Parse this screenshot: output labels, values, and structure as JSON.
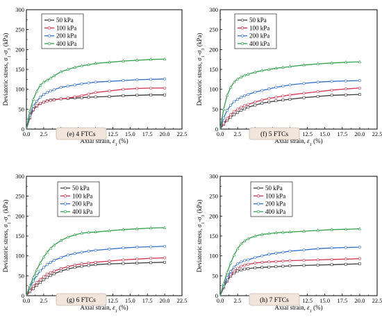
{
  "colors": {
    "axis": "#000000",
    "caption_bg": "#f2e6dc",
    "caption_border": "#c9b8a6",
    "series": [
      "#3a3a3a",
      "#d6304b",
      "#2f6fcf",
      "#2fa34a"
    ]
  },
  "chart_data": [
    {
      "type": "line",
      "caption": "(e) 4 FTCs",
      "ylabel": "Deviatoric stress, σ1-σ3 (kPa)",
      "xlabel": "Axial strain, ε1 (%)",
      "xlim": [
        0,
        22.5
      ],
      "ylim": [
        0,
        300
      ],
      "xticks": [
        "0.0",
        "2.5",
        "5.0",
        "7.5",
        "10.0",
        "12.5",
        "15.0",
        "17.5",
        "20.0",
        "22.5"
      ],
      "yticks": [
        "0",
        "50",
        "100",
        "150",
        "200",
        "250",
        "300"
      ],
      "legend_position": "top-left",
      "x": [
        0,
        0.5,
        1,
        1.5,
        2,
        2.5,
        3,
        3.5,
        4,
        5,
        6,
        7,
        8,
        9,
        10,
        12,
        14,
        16,
        18,
        20
      ],
      "series": [
        {
          "name": "50 kPa",
          "values": [
            0,
            28,
            48,
            58,
            64,
            68,
            71,
            73,
            74,
            76,
            77,
            78,
            79,
            80,
            81,
            82,
            84,
            85,
            86,
            86
          ]
        },
        {
          "name": "100 kPa",
          "values": [
            0,
            30,
            50,
            60,
            65,
            68,
            70,
            72,
            73,
            76,
            78,
            81,
            84,
            88,
            92,
            96,
            100,
            102,
            103,
            103
          ]
        },
        {
          "name": "200 kPa",
          "values": [
            0,
            35,
            58,
            70,
            80,
            87,
            92,
            96,
            99,
            105,
            108,
            111,
            114,
            116,
            118,
            120,
            122,
            124,
            125,
            126
          ]
        },
        {
          "name": "400 kPa",
          "values": [
            0,
            45,
            75,
            95,
            110,
            118,
            123,
            128,
            134,
            144,
            150,
            155,
            159,
            162,
            165,
            168,
            171,
            173,
            175,
            176
          ]
        }
      ]
    },
    {
      "type": "line",
      "caption": "(f) 5 FTCs",
      "ylabel": "Deviatoric stress, σ1-σ3 (kPa)",
      "xlabel": "Axial strain, ε1 (%)",
      "xlim": [
        0,
        22.5
      ],
      "ylim": [
        0,
        300
      ],
      "xticks": [
        "0.0",
        "2.5",
        "5.0",
        "7.5",
        "10.0",
        "12.5",
        "15.0",
        "17.5",
        "20.0",
        "22.5"
      ],
      "yticks": [
        "0",
        "50",
        "100",
        "150",
        "200",
        "250",
        "300"
      ],
      "legend_position": "top-left",
      "x": [
        0,
        0.5,
        1,
        1.5,
        2,
        2.5,
        3,
        3.5,
        4,
        5,
        6,
        7,
        8,
        9,
        10,
        12,
        14,
        16,
        18,
        20
      ],
      "series": [
        {
          "name": "50 kPa",
          "values": [
            0,
            12,
            22,
            30,
            36,
            42,
            47,
            51,
            55,
            60,
            65,
            68,
            71,
            73,
            75,
            79,
            82,
            85,
            86,
            87
          ]
        },
        {
          "name": "100 kPa",
          "values": [
            0,
            15,
            27,
            36,
            44,
            50,
            55,
            59,
            62,
            68,
            73,
            77,
            80,
            83,
            86,
            90,
            94,
            98,
            101,
            103
          ]
        },
        {
          "name": "200 kPa",
          "values": [
            0,
            28,
            47,
            60,
            69,
            75,
            80,
            84,
            87,
            93,
            97,
            101,
            105,
            108,
            111,
            115,
            118,
            120,
            121,
            122
          ]
        },
        {
          "name": "400 kPa",
          "values": [
            0,
            50,
            85,
            105,
            118,
            126,
            131,
            135,
            138,
            143,
            147,
            150,
            153,
            155,
            157,
            161,
            164,
            166,
            168,
            169
          ]
        }
      ]
    },
    {
      "type": "line",
      "caption": "(g) 6 FTCs",
      "ylabel": "Deviatoric stress, σ1-σ3 (kPa)",
      "xlabel": "Axial strain, ε1 (%)",
      "xlim": [
        0,
        22.5
      ],
      "ylim": [
        0,
        300
      ],
      "xticks": [
        "0.0",
        "2.5",
        "5.0",
        "7.5",
        "10.0",
        "12.5",
        "15.0",
        "17.5",
        "20.0",
        "22.5"
      ],
      "yticks": [
        "0",
        "50",
        "100",
        "150",
        "200",
        "250",
        "300"
      ],
      "legend_position": "top-center",
      "x": [
        0,
        0.5,
        1,
        1.5,
        2,
        2.5,
        3,
        3.5,
        4,
        5,
        6,
        7,
        8,
        9,
        10,
        12,
        14,
        16,
        18,
        20
      ],
      "series": [
        {
          "name": "50 kPa",
          "values": [
            0,
            10,
            18,
            26,
            33,
            40,
            46,
            51,
            55,
            62,
            67,
            71,
            74,
            76,
            78,
            80,
            81,
            82,
            83,
            84
          ]
        },
        {
          "name": "100 kPa",
          "values": [
            0,
            13,
            24,
            33,
            41,
            48,
            54,
            58,
            62,
            68,
            73,
            77,
            80,
            82,
            84,
            87,
            90,
            92,
            94,
            95
          ]
        },
        {
          "name": "200 kPa",
          "values": [
            0,
            20,
            37,
            51,
            62,
            71,
            78,
            84,
            89,
            96,
            102,
            106,
            109,
            112,
            114,
            117,
            120,
            122,
            123,
            124
          ]
        },
        {
          "name": "400 kPa",
          "values": [
            0,
            25,
            46,
            65,
            82,
            97,
            109,
            119,
            127,
            139,
            147,
            153,
            157,
            159,
            160,
            163,
            166,
            168,
            170,
            171
          ]
        }
      ]
    },
    {
      "type": "line",
      "caption": "(h) 7 FTCs",
      "ylabel": "Deviatoric stress, σ1-σ3 (kPa)",
      "xlabel": "Axial strain, ε1 (%)",
      "xlim": [
        0,
        22.5
      ],
      "ylim": [
        0,
        300
      ],
      "xticks": [
        "0.0",
        "2.5",
        "5.0",
        "7.5",
        "10.0",
        "12.5",
        "15.0",
        "17.5",
        "20.0",
        "22.5"
      ],
      "yticks": [
        "0",
        "50",
        "100",
        "150",
        "200",
        "250",
        "300"
      ],
      "legend_position": "top-center",
      "x": [
        0,
        0.5,
        1,
        1.5,
        2,
        2.5,
        3,
        3.5,
        4,
        5,
        6,
        7,
        8,
        9,
        10,
        12,
        14,
        16,
        18,
        20
      ],
      "series": [
        {
          "name": "50 kPa",
          "values": [
            0,
            20,
            37,
            49,
            57,
            62,
            65,
            67,
            68,
            70,
            71,
            72,
            73,
            74,
            75,
            76,
            77,
            78,
            79,
            80
          ]
        },
        {
          "name": "100 kPa",
          "values": [
            0,
            22,
            40,
            53,
            62,
            69,
            74,
            77,
            79,
            82,
            84,
            85,
            86,
            87,
            88,
            89,
            90,
            91,
            92,
            93
          ]
        },
        {
          "name": "200 kPa",
          "values": [
            0,
            24,
            45,
            61,
            72,
            80,
            85,
            88,
            90,
            96,
            100,
            104,
            107,
            109,
            112,
            115,
            118,
            120,
            121,
            122
          ]
        },
        {
          "name": "400 kPa",
          "values": [
            0,
            30,
            58,
            82,
            102,
            118,
            130,
            138,
            143,
            150,
            154,
            156,
            158,
            159,
            160,
            162,
            164,
            166,
            167,
            168
          ]
        }
      ]
    }
  ]
}
